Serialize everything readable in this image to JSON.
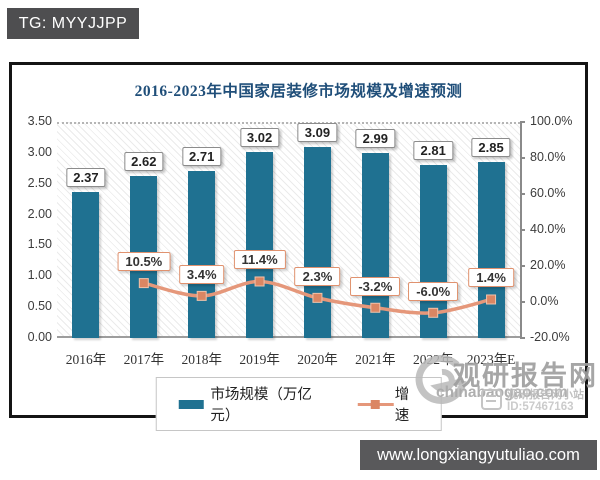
{
  "tg_badge": {
    "label": "TG: MYYJJPP"
  },
  "bottom_bar": {
    "url": "www.longxiangyutuliao.com"
  },
  "watermark": {
    "site_name": "观研报告网",
    "site_domain": "chinabaogao.com",
    "badge_line1": "观研报告网小站",
    "badge_line2": "ID:57467163"
  },
  "chart_data": {
    "type": "bar+line combo",
    "title": "2016-2023年中国家居装修市场规模及增速预测",
    "categories": [
      "2016年",
      "2017年",
      "2018年",
      "2019年",
      "2020年",
      "2021年",
      "2022年",
      "2023年E"
    ],
    "series": [
      {
        "name": "市场规模（万亿元）",
        "type": "bar",
        "axis": "left",
        "color": "#1f7191",
        "values": [
          2.37,
          2.62,
          2.71,
          3.02,
          3.09,
          2.99,
          2.81,
          2.85
        ],
        "labels": [
          "2.37",
          "2.62",
          "2.71",
          "3.02",
          "3.09",
          "2.99",
          "2.81",
          "2.85"
        ]
      },
      {
        "name": "增速",
        "type": "line",
        "axis": "right",
        "color": "#e5977a",
        "marker_color": "#db8663",
        "values": [
          null,
          10.5,
          3.4,
          11.4,
          2.3,
          -3.2,
          -6.0,
          1.4
        ],
        "labels": [
          null,
          "10.5%",
          "3.4%",
          "11.4%",
          "2.3%",
          "-3.2%",
          "-6.0%",
          "1.4%"
        ]
      }
    ],
    "left_axis": {
      "min": 0,
      "max": 3.5,
      "ticks": [
        "3.50",
        "3.00",
        "2.50",
        "2.00",
        "1.50",
        "1.00",
        "0.50",
        "0.00"
      ]
    },
    "right_axis": {
      "min": -20,
      "max": 100,
      "ticks": [
        "100.0%",
        "80.0%",
        "60.0%",
        "40.0%",
        "20.0%",
        "0.0%",
        "-20.0%"
      ]
    },
    "legend_position": "bottom",
    "grid": "hatched background, dotted top gridline only"
  }
}
